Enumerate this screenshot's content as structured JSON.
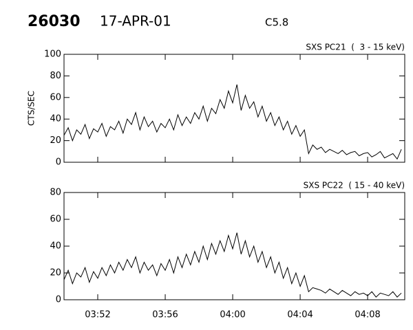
{
  "header": {
    "event": "26030",
    "date": "17-APR-01",
    "class": "C5.8"
  },
  "chart_data": [
    {
      "type": "line",
      "title": "SXS PC21  (  3 - 15 keV)",
      "ylabel": "CTS/SEC",
      "color": "#000000",
      "x": [
        230,
        230.25,
        230.5,
        230.75,
        231,
        231.25,
        231.5,
        231.75,
        232,
        232.25,
        232.5,
        232.75,
        233,
        233.25,
        233.5,
        233.75,
        234,
        234.25,
        234.5,
        234.75,
        235,
        235.25,
        235.5,
        235.75,
        236,
        236.25,
        236.5,
        236.75,
        237,
        237.25,
        237.5,
        237.75,
        238,
        238.25,
        238.5,
        238.75,
        239,
        239.25,
        239.5,
        239.75,
        240,
        240.25,
        240.5,
        240.75,
        241,
        241.25,
        241.5,
        241.75,
        242,
        242.25,
        242.5,
        242.75,
        243,
        243.25,
        243.5,
        243.75,
        244,
        244.25,
        244.5,
        244.75,
        245,
        245.25,
        245.5,
        245.75,
        246,
        246.25,
        246.5,
        246.75,
        247,
        247.25,
        247.5,
        247.75,
        248,
        248.25,
        248.5,
        248.75,
        249,
        249.25,
        249.5,
        249.75,
        250
      ],
      "values": [
        25,
        32,
        20,
        30,
        26,
        35,
        22,
        31,
        28,
        36,
        24,
        33,
        30,
        38,
        27,
        40,
        35,
        46,
        30,
        42,
        33,
        38,
        28,
        36,
        32,
        40,
        30,
        44,
        34,
        42,
        36,
        46,
        40,
        52,
        38,
        50,
        45,
        58,
        50,
        66,
        55,
        72,
        48,
        62,
        50,
        56,
        42,
        52,
        38,
        46,
        34,
        42,
        30,
        38,
        26,
        34,
        24,
        30,
        8,
        16,
        12,
        14,
        9,
        12,
        10,
        8,
        11,
        7,
        9,
        10,
        6,
        8,
        9,
        5,
        7,
        10,
        4,
        6,
        8,
        3,
        12
      ],
      "xlim": [
        230,
        250.2
      ],
      "ylim": [
        0,
        100
      ],
      "yticks": [
        0,
        20,
        40,
        60,
        80,
        100
      ]
    },
    {
      "type": "line",
      "title": "SXS PC22  ( 15 - 40 keV)",
      "color": "#000000",
      "x": [
        230,
        230.25,
        230.5,
        230.75,
        231,
        231.25,
        231.5,
        231.75,
        232,
        232.25,
        232.5,
        232.75,
        233,
        233.25,
        233.5,
        233.75,
        234,
        234.25,
        234.5,
        234.75,
        235,
        235.25,
        235.5,
        235.75,
        236,
        236.25,
        236.5,
        236.75,
        237,
        237.25,
        237.5,
        237.75,
        238,
        238.25,
        238.5,
        238.75,
        239,
        239.25,
        239.5,
        239.75,
        240,
        240.25,
        240.5,
        240.75,
        241,
        241.25,
        241.5,
        241.75,
        242,
        242.25,
        242.5,
        242.75,
        243,
        243.25,
        243.5,
        243.75,
        244,
        244.25,
        244.5,
        244.75,
        245,
        245.25,
        245.5,
        245.75,
        246,
        246.25,
        246.5,
        246.75,
        247,
        247.25,
        247.5,
        247.75,
        248,
        248.25,
        248.5,
        248.75,
        249,
        249.25,
        249.5,
        249.75,
        250
      ],
      "values": [
        15,
        22,
        12,
        20,
        17,
        24,
        13,
        21,
        16,
        24,
        18,
        26,
        20,
        28,
        22,
        30,
        24,
        32,
        20,
        28,
        22,
        26,
        18,
        27,
        22,
        30,
        20,
        32,
        24,
        34,
        26,
        36,
        28,
        40,
        30,
        42,
        34,
        44,
        36,
        48,
        38,
        50,
        34,
        44,
        32,
        40,
        28,
        36,
        24,
        32,
        20,
        28,
        16,
        24,
        12,
        20,
        10,
        18,
        6,
        9,
        8,
        7,
        5,
        8,
        6,
        4,
        7,
        5,
        3,
        6,
        4,
        5,
        3,
        6,
        2,
        5,
        4,
        3,
        6,
        2,
        5
      ],
      "xlim": [
        230,
        250.2
      ],
      "ylim": [
        0,
        80
      ],
      "yticks": [
        0,
        20,
        40,
        60,
        80
      ],
      "xticks": [
        {
          "value": 232,
          "label": "03:52"
        },
        {
          "value": 236,
          "label": "03:56"
        },
        {
          "value": 240,
          "label": "04:00"
        },
        {
          "value": 244,
          "label": "04:04"
        },
        {
          "value": 248,
          "label": "04:08"
        }
      ]
    }
  ]
}
